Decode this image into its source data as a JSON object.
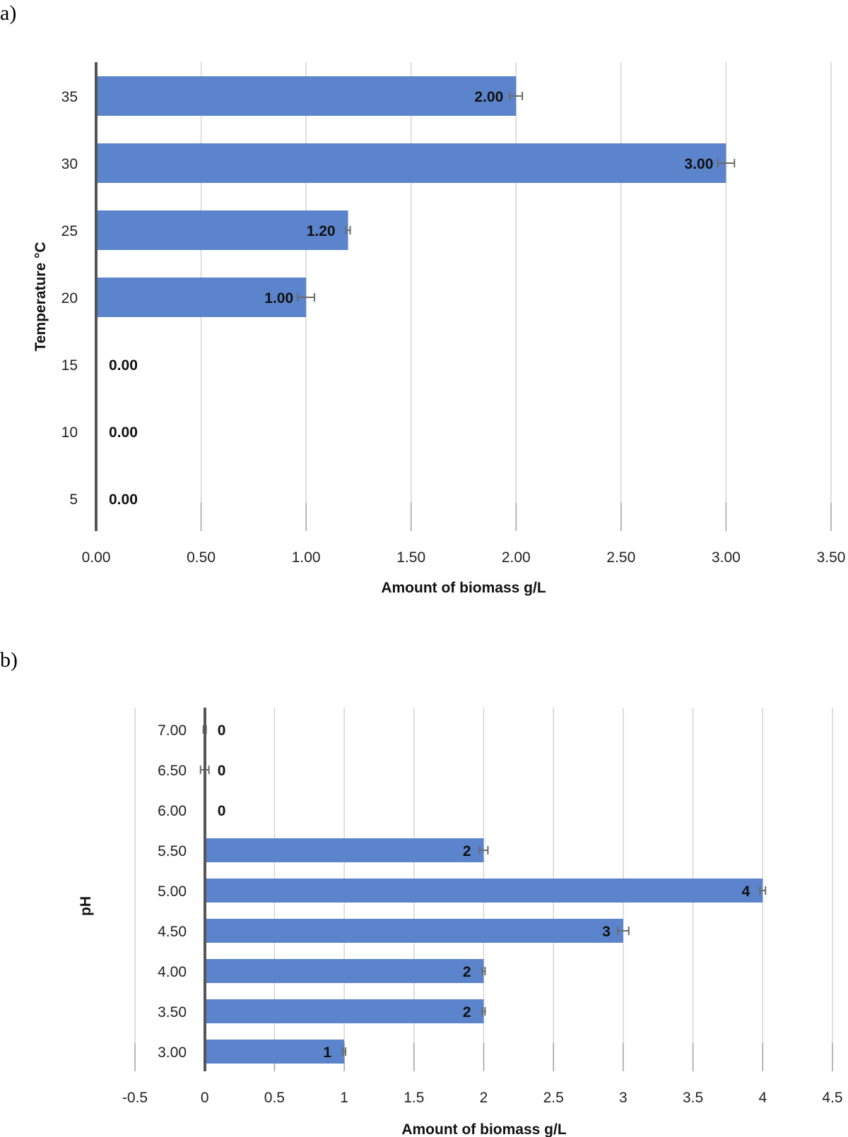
{
  "chart_data": [
    {
      "type": "bar",
      "orientation": "horizontal",
      "panel_label": "a)",
      "title": "",
      "categories": [
        "35",
        "30",
        "25",
        "20",
        "15",
        "10",
        "5"
      ],
      "values": [
        2.0,
        3.0,
        1.2,
        1.0,
        0.0,
        0.0,
        0.0
      ],
      "errors": [
        0.03,
        0.04,
        0.01,
        0.04,
        0,
        0,
        0
      ],
      "data_labels": [
        "2.00",
        "3.00",
        "1.20",
        "1.00",
        "0.00",
        "0.00",
        "0.00"
      ],
      "xlabel": "Amount of biomass g/L",
      "ylabel": "Temperature °C",
      "xlim": [
        0,
        3.5
      ],
      "xticks": [
        0,
        0.5,
        1,
        1.5,
        2,
        2.5,
        3,
        3.5
      ],
      "xtick_labels": [
        "0.00",
        "0.50",
        "1.00",
        "1.50",
        "2.00",
        "2.50",
        "3.00",
        "3.50"
      ],
      "grid": true,
      "colors": {
        "bar": "#5b84cc",
        "error": "#6b6b6b"
      }
    },
    {
      "type": "bar",
      "orientation": "horizontal",
      "panel_label": "b)",
      "title": "",
      "categories": [
        "7.00",
        "6.50",
        "6.00",
        "5.50",
        "5.00",
        "4.50",
        "4.00",
        "3.50",
        "3.00"
      ],
      "values": [
        0,
        0,
        0,
        2,
        4,
        3,
        2,
        2,
        1
      ],
      "errors": [
        0.01,
        0.03,
        0,
        0.03,
        0.02,
        0.04,
        0.01,
        0.01,
        0.01
      ],
      "data_labels": [
        "0",
        "0",
        "0",
        "2",
        "4",
        "3",
        "2",
        "2",
        "1"
      ],
      "xlabel": "Amount of biomass g/L",
      "ylabel": "pH",
      "xlim": [
        -0.5,
        4.5
      ],
      "xticks": [
        -0.5,
        0,
        0.5,
        1,
        1.5,
        2,
        2.5,
        3,
        3.5,
        4,
        4.5
      ],
      "xtick_labels": [
        "-0.5",
        "0",
        "0.5",
        "1",
        "1.5",
        "2",
        "2.5",
        "3",
        "3.5",
        "4",
        "4.5"
      ],
      "grid": true,
      "colors": {
        "bar": "#5b84cc",
        "error": "#6b6b6b"
      }
    }
  ]
}
